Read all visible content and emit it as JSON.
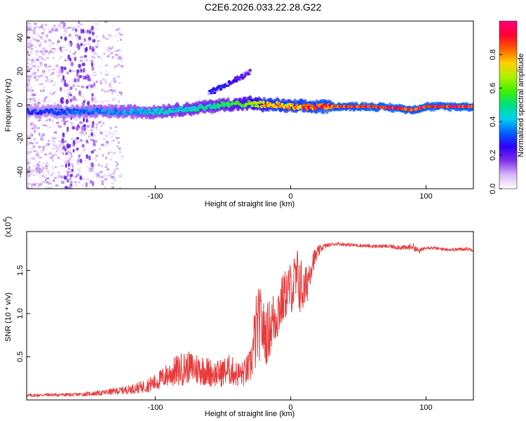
{
  "title": "C2E6.2026.033.22.28.G22",
  "chart_data": [
    {
      "type": "heatmap",
      "name": "spectrogram",
      "xlabel": "Height of straight line (km)",
      "ylabel": "Frequency (Hz)",
      "xlim": [
        -195,
        135
      ],
      "ylim": [
        -50,
        50
      ],
      "xticks": [
        -100,
        0,
        100
      ],
      "xtick_labels": [
        "-100",
        "0",
        "100"
      ],
      "yticks": [
        -40,
        -20,
        0,
        20,
        40
      ],
      "ytick_labels": [
        "-40",
        "-20",
        "0",
        "20",
        "40"
      ],
      "colorbar": {
        "label": "Normalized spectral amplitude",
        "range": [
          0,
          1
        ],
        "ticks": [
          0.0,
          0.2,
          0.4,
          0.6,
          0.8
        ],
        "tick_labels": [
          "0.0",
          "0.2",
          "0.4",
          "0.6",
          "0.8"
        ],
        "colors": [
          "#ffffff",
          "#d8b8f8",
          "#8030e8",
          "#3000f8",
          "#0060ff",
          "#00d0f0",
          "#00e080",
          "#40f000",
          "#b0f000",
          "#ffd000",
          "#ff6000",
          "#ff0030",
          "#ff0080"
        ]
      },
      "ridges": [
        {
          "x": [
            -195,
            -160,
            -130,
            -100,
            -70,
            -50,
            -30,
            -20,
            -10,
            0,
            20,
            60,
            80,
            90,
            100,
            135
          ],
          "y": [
            -4,
            -4,
            -4,
            -4,
            -2,
            0,
            1,
            0,
            0,
            -1,
            -1,
            -1,
            -2,
            -3,
            -1,
            -1
          ],
          "amp": [
            0.3,
            0.35,
            0.4,
            0.45,
            0.5,
            0.55,
            0.65,
            0.8,
            0.85,
            0.85,
            0.9,
            0.95,
            0.95,
            0.9,
            0.95,
            0.95
          ]
        },
        {
          "x": [
            -60,
            -50,
            -40,
            -30
          ],
          "y": [
            7,
            11,
            15,
            20
          ],
          "amp": [
            0.3,
            0.3,
            0.25,
            0.2
          ]
        }
      ]
    },
    {
      "type": "line",
      "name": "snr",
      "xlabel": "Height of straight line (km)",
      "ylabel": "SNR (10 * v/v)",
      "multiplier": "(x10",
      "multiplier_exp": "4",
      "multiplier_close": ")",
      "color": "#e83a3a",
      "xlim": [
        -195,
        135
      ],
      "ylim": [
        0,
        1.95
      ],
      "xticks": [
        -100,
        0,
        100
      ],
      "xtick_labels": [
        "-100",
        "0",
        "100"
      ],
      "yticks": [
        0.5,
        1.0,
        1.5
      ],
      "ytick_labels": [
        "0.5",
        "1.0",
        "1.5"
      ],
      "series": [
        {
          "name": "SNR",
          "x": [
            -195,
            -180,
            -160,
            -140,
            -120,
            -110,
            -100,
            -95,
            -90,
            -85,
            -80,
            -75,
            -70,
            -65,
            -60,
            -55,
            -50,
            -45,
            -40,
            -35,
            -30,
            -28,
            -26,
            -24,
            -22,
            -20,
            -18,
            -15,
            -12,
            -9,
            -6,
            -3,
            0,
            3,
            6,
            8,
            10,
            12,
            14,
            16,
            18,
            20,
            22,
            25,
            30,
            35,
            40,
            50,
            60,
            70,
            80,
            85,
            90,
            95,
            100,
            110,
            120,
            130,
            135
          ],
          "y": [
            0.05,
            0.06,
            0.06,
            0.08,
            0.12,
            0.15,
            0.2,
            0.25,
            0.3,
            0.33,
            0.36,
            0.38,
            0.36,
            0.35,
            0.32,
            0.3,
            0.32,
            0.35,
            0.3,
            0.3,
            0.38,
            0.55,
            0.75,
            0.85,
            0.9,
            0.8,
            0.75,
            0.85,
            0.95,
            1.05,
            1.15,
            1.25,
            1.3,
            1.35,
            1.4,
            1.3,
            1.25,
            1.35,
            1.5,
            1.6,
            1.65,
            1.7,
            1.75,
            1.78,
            1.8,
            1.81,
            1.8,
            1.79,
            1.78,
            1.78,
            1.77,
            1.76,
            1.78,
            1.72,
            1.77,
            1.75,
            1.74,
            1.75,
            1.74
          ],
          "noise": [
            0.02,
            0.02,
            0.02,
            0.03,
            0.05,
            0.07,
            0.1,
            0.12,
            0.15,
            0.18,
            0.2,
            0.18,
            0.2,
            0.18,
            0.17,
            0.15,
            0.17,
            0.18,
            0.15,
            0.15,
            0.2,
            0.3,
            0.45,
            0.45,
            0.4,
            0.35,
            0.35,
            0.35,
            0.35,
            0.35,
            0.3,
            0.3,
            0.3,
            0.35,
            0.4,
            0.35,
            0.25,
            0.25,
            0.2,
            0.15,
            0.1,
            0.08,
            0.05,
            0.03,
            0.02,
            0.02,
            0.02,
            0.02,
            0.02,
            0.02,
            0.03,
            0.03,
            0.04,
            0.03,
            0.02,
            0.02,
            0.02,
            0.02,
            0.02
          ]
        }
      ]
    }
  ]
}
